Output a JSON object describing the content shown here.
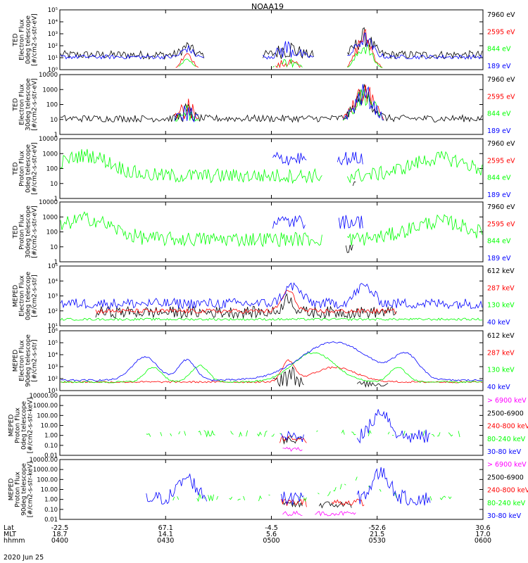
{
  "title": "NOAA19",
  "date": "2020 Jun 25",
  "colors": {
    "black": "#000000",
    "red": "#ff0000",
    "green": "#00ff00",
    "blue": "#0000ff",
    "magenta": "#ff00ff"
  },
  "x_axis": {
    "row_labels": [
      "Lat",
      "MLT",
      "hhmm"
    ],
    "ticks": [
      {
        "lat": "-22.5",
        "mlt": "18.7",
        "time": "0400"
      },
      {
        "lat": "67.1",
        "mlt": "14.1",
        "time": "0430"
      },
      {
        "lat": "-4.5",
        "mlt": "5.6",
        "time": "0500"
      },
      {
        "lat": "-52.6",
        "mlt": "21.5",
        "time": "0530"
      },
      {
        "lat": "30.6",
        "mlt": "17.0",
        "time": "0600"
      }
    ]
  },
  "chart_data": [
    {
      "type": "line",
      "ylabel": [
        "TED",
        "Electron Flux",
        "0deg telescope",
        "[#/cm2-s-str-eV]"
      ],
      "scale": "log",
      "ylim": [
        1,
        100000
      ],
      "yticks": [
        "10⁰",
        "10¹",
        "10²",
        "10³",
        "10⁴",
        "10⁵"
      ],
      "series": [
        {
          "name": "7960 eV",
          "color": "black"
        },
        {
          "name": "2595 eV",
          "color": "red"
        },
        {
          "name": "844 eV",
          "color": "green"
        },
        {
          "name": "189 eV",
          "color": "blue"
        }
      ]
    },
    {
      "type": "line",
      "ylabel": [
        "TED",
        "Electron Flux",
        "30deg telescope",
        "[#/cm2-s-str-eV]"
      ],
      "scale": "log",
      "ylim": [
        1,
        10000
      ],
      "yticks": [
        "1",
        "10",
        "100",
        "1000",
        "10000"
      ],
      "series": [
        {
          "name": "7960 eV",
          "color": "black"
        },
        {
          "name": "2595 eV",
          "color": "red"
        },
        {
          "name": "844 eV",
          "color": "green"
        },
        {
          "name": "189 eV",
          "color": "blue"
        }
      ]
    },
    {
      "type": "line",
      "ylabel": [
        "TED",
        "Proton Flux",
        "0deg telescope",
        "[#/cm2-s-str-eV]"
      ],
      "scale": "log",
      "ylim": [
        1,
        10000
      ],
      "yticks": [
        "1",
        "10",
        "100",
        "1000",
        "10000"
      ],
      "series": [
        {
          "name": "7960 eV",
          "color": "black"
        },
        {
          "name": "2595 eV",
          "color": "red"
        },
        {
          "name": "844 eV",
          "color": "green"
        },
        {
          "name": "189 eV",
          "color": "blue"
        }
      ]
    },
    {
      "type": "line",
      "ylabel": [
        "TED",
        "Proton Flux",
        "30deg telescope",
        "[#/cm2-s-str-eV]"
      ],
      "scale": "log",
      "ylim": [
        1,
        10000
      ],
      "yticks": [
        "1",
        "10",
        "100",
        "1000",
        "10000"
      ],
      "series": [
        {
          "name": "7960 eV",
          "color": "black"
        },
        {
          "name": "2595 eV",
          "color": "red"
        },
        {
          "name": "844 eV",
          "color": "green"
        },
        {
          "name": "189 eV",
          "color": "blue"
        }
      ]
    },
    {
      "type": "line",
      "ylabel": [
        "MEPED",
        "Electron Flux",
        "0deg telescope",
        "[#/cm2-s-str]"
      ],
      "scale": "log",
      "ylim": [
        10,
        100000
      ],
      "yticks": [
        "10¹",
        "10²",
        "10³",
        "10⁴",
        "10⁵"
      ],
      "series": [
        {
          "name": "612 keV",
          "color": "black"
        },
        {
          "name": "287 keV",
          "color": "red"
        },
        {
          "name": "130 keV",
          "color": "green"
        },
        {
          "name": "40 keV",
          "color": "blue"
        }
      ]
    },
    {
      "type": "line",
      "ylabel": [
        "MEPED",
        "Electron Flux",
        "90deg telescope",
        "[#/cm2-s-str]"
      ],
      "scale": "log",
      "ylim": [
        10,
        1000000
      ],
      "yticks": [
        "10¹",
        "10²",
        "10³",
        "10⁴",
        "10⁵",
        "10⁶"
      ],
      "series": [
        {
          "name": "612 keV",
          "color": "black"
        },
        {
          "name": "287 keV",
          "color": "red"
        },
        {
          "name": "130 keV",
          "color": "green"
        },
        {
          "name": "40 keV",
          "color": "blue"
        }
      ]
    },
    {
      "type": "line",
      "ylabel": [
        "MEPED",
        "Proton Flux",
        "0deg telescope",
        "[#/cm2-s-str-keV]"
      ],
      "scale": "log",
      "ylim": [
        0.01,
        10000
      ],
      "yticks": [
        "0.01",
        "0.10",
        "1.00",
        "10.00",
        "100.00",
        "1000.00",
        "10000.00"
      ],
      "series": [
        {
          "name": "> 6900 keV",
          "color": "magenta"
        },
        {
          "name": "2500-6900",
          "color": "black"
        },
        {
          "name": "240-800 keV",
          "color": "red"
        },
        {
          "name": "80-240 keV",
          "color": "green"
        },
        {
          "name": "30-80 keV",
          "color": "blue"
        }
      ]
    },
    {
      "type": "line",
      "ylabel": [
        "MEPED",
        "Proton Flux",
        "90deg telescope",
        "[#/cm2-s-str-keV]"
      ],
      "scale": "log",
      "ylim": [
        0.01,
        10000
      ],
      "yticks": [
        "0.01",
        "0.10",
        "1.00",
        "10.00",
        "100.00",
        "1000.00",
        "10000.00"
      ],
      "series": [
        {
          "name": "> 6900 keV",
          "color": "magenta"
        },
        {
          "name": "2500-6900",
          "color": "black"
        },
        {
          "name": "240-800 keV",
          "color": "red"
        },
        {
          "name": "80-240 keV",
          "color": "green"
        },
        {
          "name": "30-80 keV",
          "color": "blue"
        }
      ]
    }
  ]
}
